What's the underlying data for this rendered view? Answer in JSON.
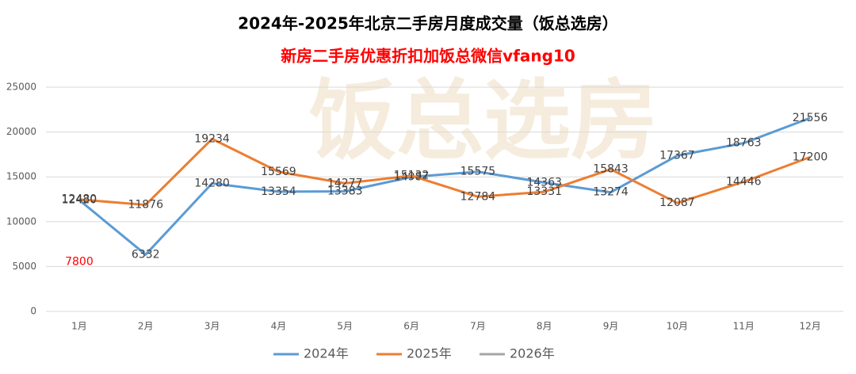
{
  "chart_data": {
    "type": "line",
    "title": "2024年-2025年北京二手房月度成交量（饭总选房）",
    "subtitle": "新房二手房优惠折扣加饭总微信vfang10",
    "watermark": "饭总选房",
    "categories": [
      "1月",
      "2月",
      "3月",
      "4月",
      "5月",
      "6月",
      "7月",
      "8月",
      "9月",
      "10月",
      "11月",
      "12月"
    ],
    "series": [
      {
        "name": "2024年",
        "color": "#5b9bd5",
        "label_color": "#404040",
        "values": [
          12420,
          6332,
          14280,
          13354,
          13383,
          14987,
          15575,
          14363,
          13274,
          17367,
          18763,
          21556
        ]
      },
      {
        "name": "2025年",
        "color": "#ed7d31",
        "label_color": "#404040",
        "values": [
          12480,
          11876,
          19234,
          15569,
          14277,
          15132,
          12784,
          13331,
          15843,
          12087,
          14446,
          17200
        ]
      },
      {
        "name": "2026年",
        "color": "#a5a5a5",
        "label_color": "#ff0000",
        "values": [
          7800,
          null,
          null,
          null,
          null,
          null,
          null,
          null,
          null,
          null,
          null,
          null
        ]
      }
    ],
    "ylim": [
      0,
      25000
    ],
    "yticks": [
      0,
      5000,
      10000,
      15000,
      20000,
      25000
    ],
    "grid": true,
    "legend": "bottom"
  }
}
